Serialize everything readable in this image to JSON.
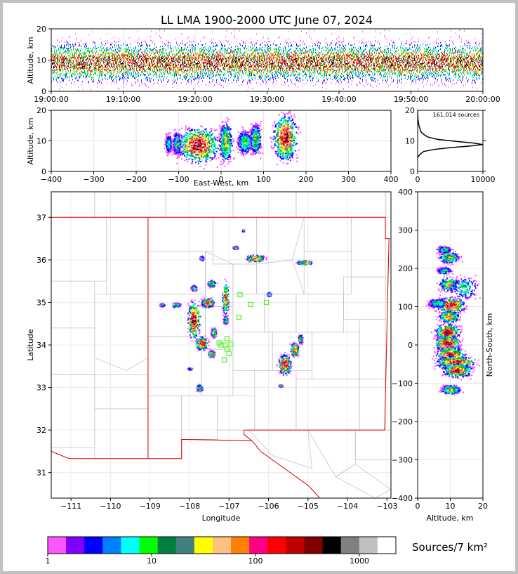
{
  "title": "LL LMA 1900-2000 UTC June 07, 2024",
  "colorbar": {
    "label": "Sources/7 km²",
    "tick_labels": [
      "1",
      "10",
      "100",
      "1000"
    ],
    "colors": [
      "#ff55ff",
      "#8000ff",
      "#0000ff",
      "#0080ff",
      "#00ffff",
      "#00ff00",
      "#008040",
      "#408080",
      "#ffff00",
      "#ffc080",
      "#ff8000",
      "#ff0080",
      "#ff0000",
      "#c00000",
      "#800000",
      "#000000",
      "#808080",
      "#c0c0c0",
      "#ffffff"
    ]
  },
  "chart_data": [
    {
      "type": "heatmap",
      "name": "altitude-time",
      "ylabel": "Altitude, km",
      "ylim": [
        0,
        20
      ],
      "y_ticks": [
        "0",
        "10",
        "20"
      ],
      "x_ticks": [
        "19:00:00",
        "19:10:00",
        "19:20:00",
        "19:30:00",
        "19:40:00",
        "19:50:00",
        "20:00:00"
      ]
    },
    {
      "type": "heatmap",
      "name": "altitude-eastwest",
      "xlabel": "East-West, km",
      "ylabel": "Altitude, km",
      "xlim": [
        -400,
        400
      ],
      "ylim": [
        0,
        20
      ],
      "x_ticks": [
        "−400",
        "−300",
        "−200",
        "−100",
        "0",
        "100",
        "200",
        "300",
        "400"
      ],
      "y_ticks": [
        "0",
        "10",
        "20"
      ]
    },
    {
      "type": "line",
      "name": "altitude-histogram",
      "annotation": "161,014 sources",
      "xlim": [
        0,
        10000
      ],
      "ylim": [
        0,
        20
      ],
      "x_ticks": [
        "0",
        "10000"
      ],
      "y_ticks": [
        "0",
        "10",
        "20"
      ],
      "x": [
        0,
        300,
        900,
        2500,
        5000,
        8000,
        10000,
        8500,
        6000,
        3000,
        1500,
        1000,
        500,
        200,
        50,
        0
      ],
      "y": [
        4.5,
        5.5,
        6.5,
        7.2,
        7.8,
        8.3,
        8.8,
        9.3,
        9.8,
        10.5,
        11.3,
        12,
        13,
        15,
        17,
        20
      ]
    },
    {
      "type": "heatmap",
      "name": "map",
      "xlabel": "Longitude",
      "ylabel": "Latitude",
      "xlim": [
        -111.5,
        -102.9
      ],
      "ylim": [
        30.4,
        37.6
      ],
      "x_ticks": [
        "−111",
        "−110",
        "−109",
        "−108",
        "−107",
        "−106",
        "−105",
        "−104",
        "−103"
      ],
      "y_ticks": [
        "31",
        "32",
        "33",
        "34",
        "35",
        "36",
        "37"
      ],
      "stations": [
        [
          -107.25,
          34.05
        ],
        [
          -107.2,
          34.0
        ],
        [
          -107.05,
          34.15
        ],
        [
          -107.1,
          34.0
        ],
        [
          -106.95,
          34.02
        ],
        [
          -107.05,
          33.9
        ],
        [
          -107.0,
          33.8
        ],
        [
          -107.12,
          33.65
        ],
        [
          -106.75,
          34.65
        ],
        [
          -106.72,
          35.18
        ],
        [
          -106.45,
          34.95
        ],
        [
          -106.05,
          35.0
        ]
      ]
    },
    {
      "type": "heatmap",
      "name": "altitude-northsouth",
      "xlabel": "Altitude, km",
      "ylabel": "North-South, km",
      "xlim": [
        0,
        20
      ],
      "ylim": [
        -400,
        400
      ],
      "x_ticks": [
        "0",
        "10",
        "20"
      ],
      "y_ticks": [
        "−400",
        "−300",
        "−200",
        "−100",
        "0",
        "100",
        "200",
        "300",
        "400"
      ]
    }
  ]
}
